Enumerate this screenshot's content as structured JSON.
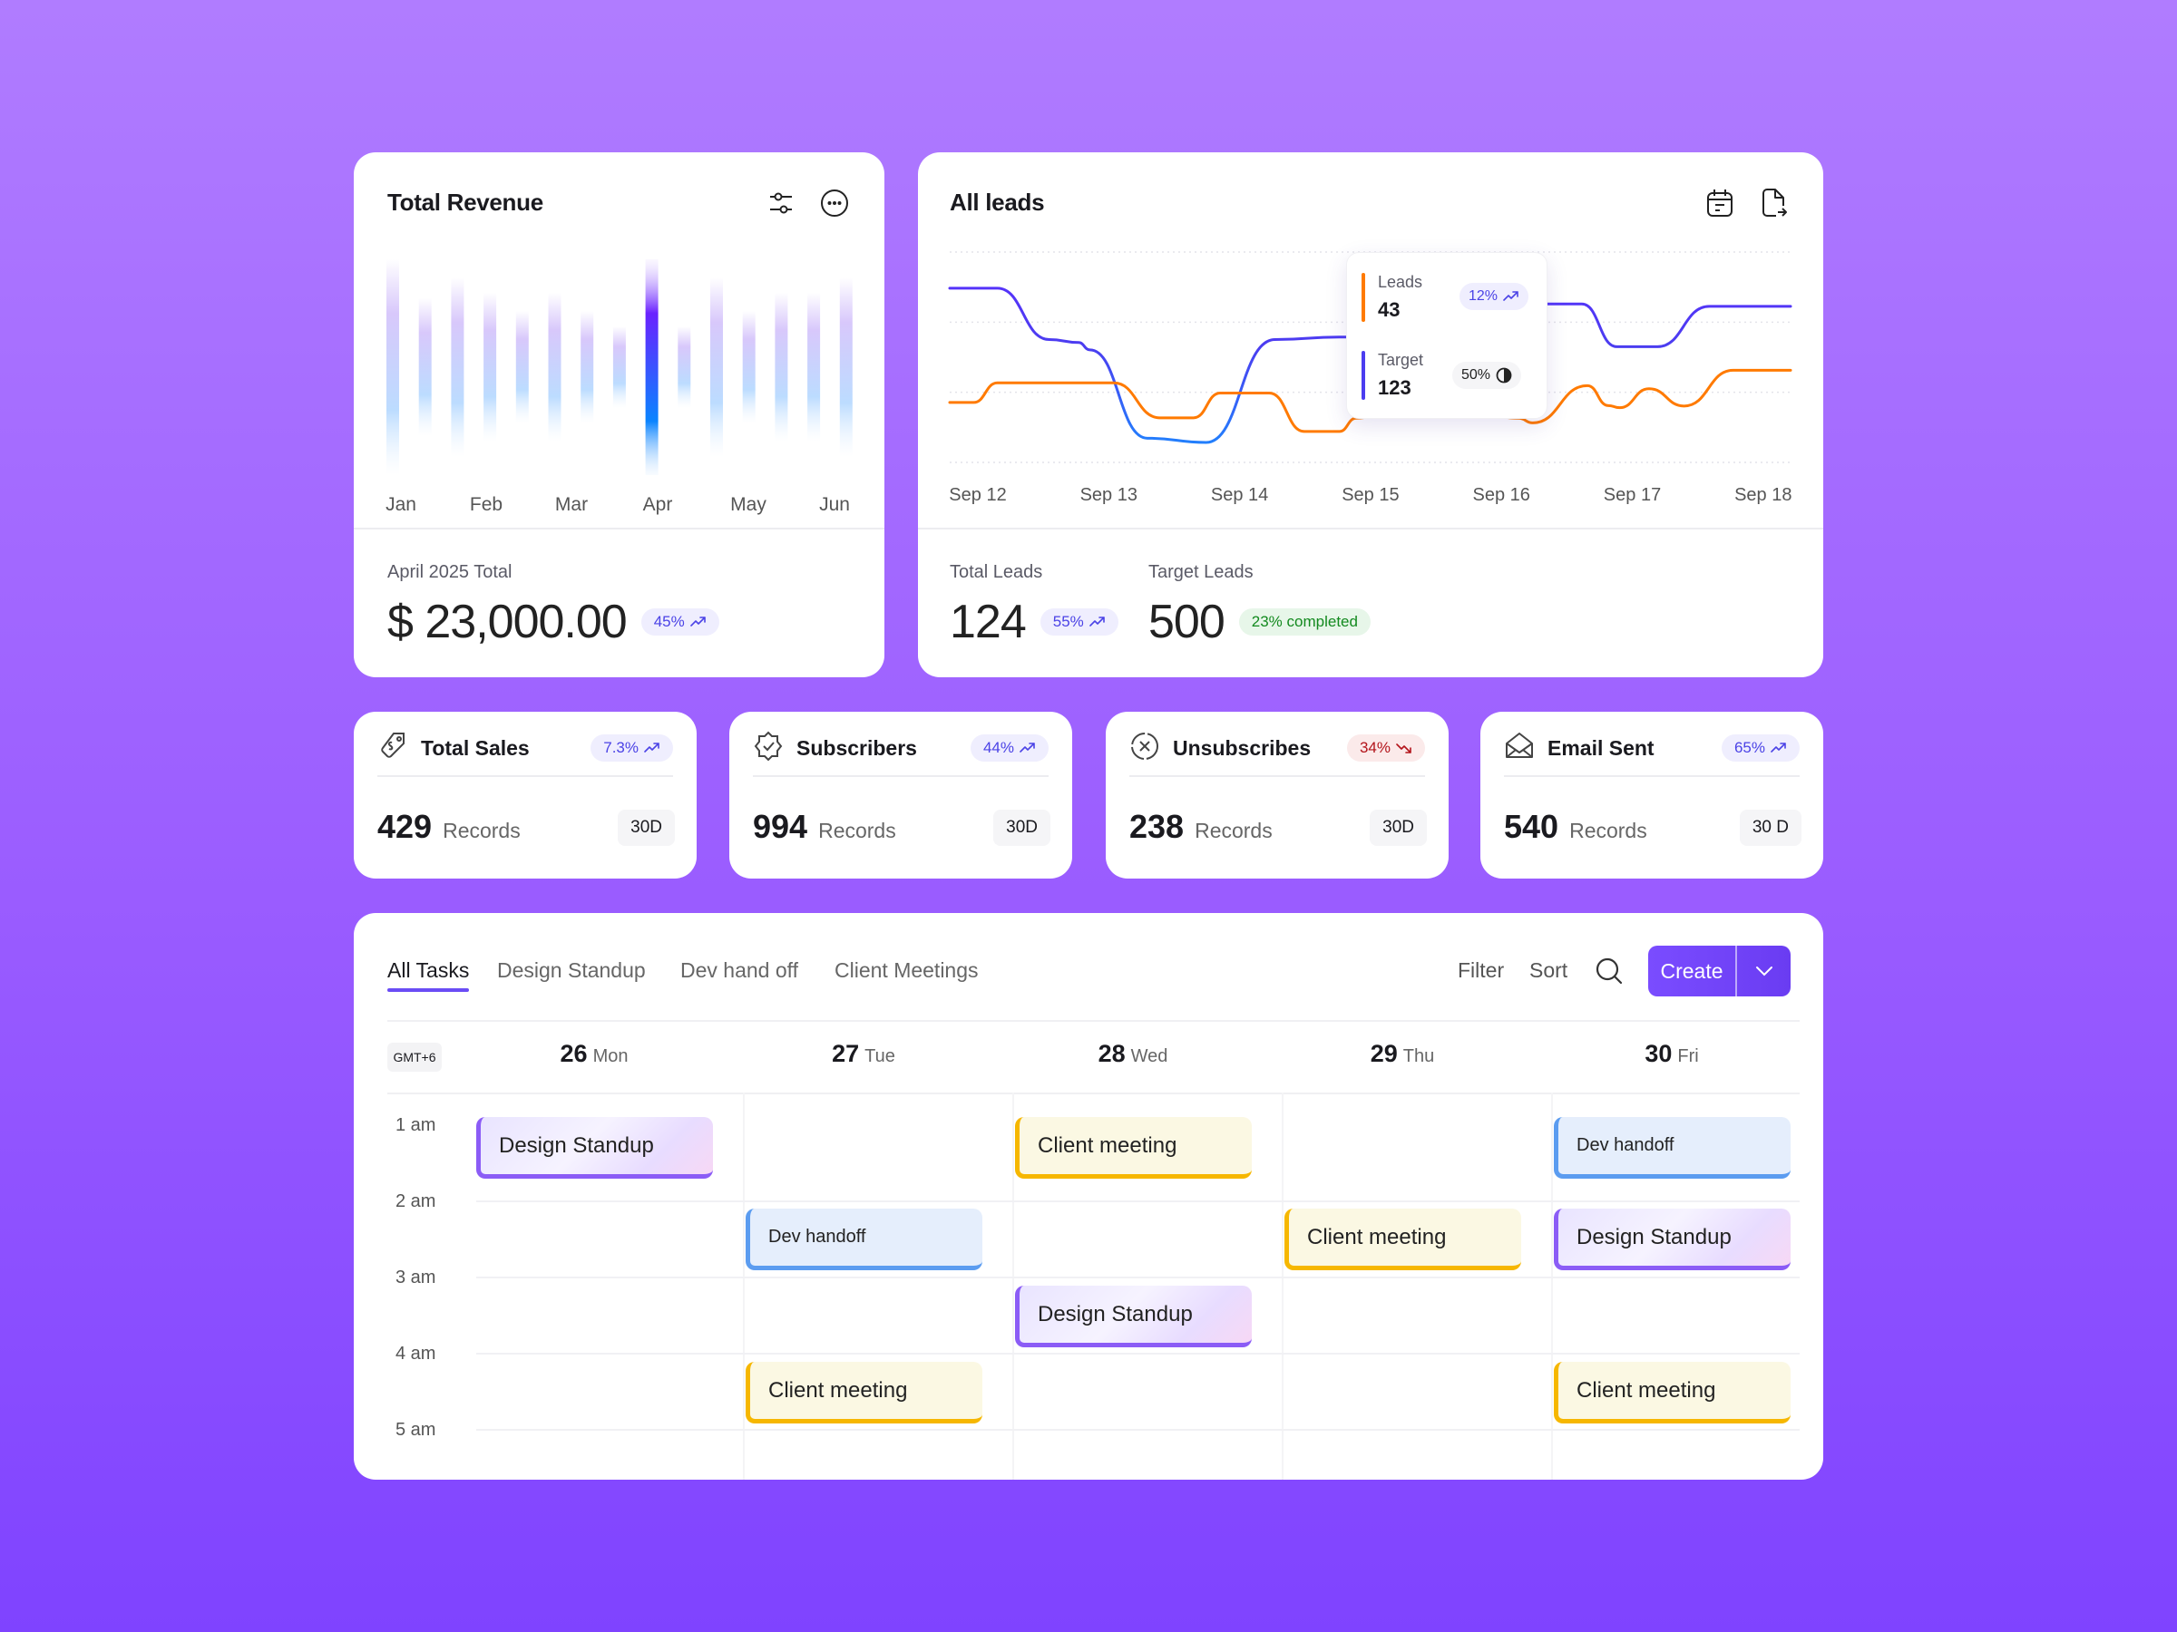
{
  "revenue": {
    "title": "Total Revenue",
    "icons": [
      "sliders-icon",
      "more-icon"
    ],
    "period_label": "April 2025 Total",
    "amount": "$ 23,000.00",
    "change": "45%",
    "chart_data": {
      "type": "bar",
      "tick_labels": [
        "Jan",
        "Feb",
        "Mar",
        "Apr",
        "May",
        "Jun"
      ],
      "values": [
        100,
        64,
        83,
        69,
        52,
        69,
        52,
        38,
        100,
        38,
        83,
        52,
        69,
        69,
        83
      ],
      "highlight_index": 8,
      "grid": false,
      "colors": {
        "top": "#7b2bff",
        "bottom": "#0a84ff",
        "faded": "#cfd6ff"
      }
    }
  },
  "leads": {
    "title": "All leads",
    "icons": [
      "calendar-icon",
      "export-file-icon"
    ],
    "total_label": "Total Leads",
    "total_value": "124",
    "total_change": "55%",
    "target_label": "Target Leads",
    "target_value": "500",
    "target_progress": "23% completed",
    "tooltip": {
      "leads_label": "Leads",
      "leads_value": "43",
      "leads_change": "12%",
      "target_label": "Target",
      "target_value": "123",
      "target_pct": "50%"
    },
    "chart_data": {
      "type": "line",
      "x_tick_labels": [
        "Sep 12",
        "Sep 13",
        "Sep 14",
        "Sep 15",
        "Sep 16",
        "Sep 17",
        "Sep 18"
      ],
      "x_unit": "day of September",
      "ylim": [
        0,
        100
      ],
      "grid": "horizontal dotted",
      "series": [
        {
          "name": "Target",
          "color": "#5b2dff",
          "color_low": "#1a8cff",
          "x": [
            12.0,
            12.34,
            12.71,
            12.92,
            13.0,
            13.41,
            13.83,
            14.32,
            14.78,
            15.19,
            15.69,
            16.06,
            16.26,
            16.51,
            16.76,
            17.05,
            17.42,
            18.0
          ],
          "y": [
            82.8,
            82.8,
            58.4,
            57,
            53.5,
            11.5,
            9.5,
            58.4,
            59.6,
            59.6,
            70,
            75.3,
            75.3,
            75.3,
            55,
            55,
            74.2,
            74.2
          ]
        },
        {
          "name": "Leads",
          "color": "#ff7a00",
          "x": [
            12.0,
            12.17,
            12.34,
            13.17,
            13.5,
            13.74,
            13.93,
            14.28,
            14.53,
            14.78,
            14.9,
            15.27,
            15.69,
            16.06,
            16.16,
            16.55,
            16.7,
            16.78,
            16.99,
            17.24,
            17.59,
            18.0
          ],
          "y": [
            28.5,
            28.5,
            37.8,
            37.8,
            21.2,
            21.2,
            33,
            33,
            14.7,
            14.7,
            21,
            30,
            25,
            21,
            18.8,
            36.5,
            27,
            26,
            35,
            26.8,
            43.8,
            43.8
          ]
        }
      ]
    }
  },
  "stats": [
    {
      "title": "Total Sales",
      "icon": "price-tag-icon",
      "change": "7.3%",
      "trend": "up",
      "value": "429",
      "unit": "Records",
      "period": "30D"
    },
    {
      "title": "Subscribers",
      "icon": "verified-badge-icon",
      "change": "44%",
      "trend": "up",
      "value": "994",
      "unit": "Records",
      "period": "30D"
    },
    {
      "title": "Unsubscribes",
      "icon": "x-circle-icon",
      "change": "34%",
      "trend": "down",
      "value": "238",
      "unit": "Records",
      "period": "30D"
    },
    {
      "title": "Email Sent",
      "icon": "envelope-open-icon",
      "change": "65%",
      "trend": "up",
      "value": "540",
      "unit": "Records",
      "period": "30 D"
    }
  ],
  "colors": {
    "up_bg": "#efeefe",
    "up_fg": "#4b43e6",
    "down_bg": "#fbeaea",
    "down_fg": "#b3141b",
    "accent": "#6a4cf5"
  },
  "tasks": {
    "tabs": [
      "All Tasks",
      "Design Standup",
      "Dev hand off",
      "Client Meetings"
    ],
    "active_tab": 0,
    "filter_label": "Filter",
    "sort_label": "Sort",
    "create_label": "Create",
    "timezone": "GMT+6",
    "days": [
      {
        "num": "26",
        "name": "Mon"
      },
      {
        "num": "27",
        "name": "Tue"
      },
      {
        "num": "28",
        "name": "Wed"
      },
      {
        "num": "29",
        "name": "Thu"
      },
      {
        "num": "30",
        "name": "Fri"
      }
    ],
    "hours": [
      "1 am",
      "2 am",
      "3 am",
      "4 am",
      "5 am"
    ],
    "events": [
      {
        "day": 0,
        "hour": 0,
        "label": "Design Standup",
        "type": "standup"
      },
      {
        "day": 2,
        "hour": 0,
        "label": "Client meeting",
        "type": "client"
      },
      {
        "day": 4,
        "hour": 0,
        "label": "Dev handoff",
        "type": "dev"
      },
      {
        "day": 1,
        "hour": 1,
        "label": "Dev handoff",
        "type": "dev"
      },
      {
        "day": 3,
        "hour": 1,
        "label": "Client meeting",
        "type": "client"
      },
      {
        "day": 4,
        "hour": 1,
        "label": "Design Standup",
        "type": "standup"
      },
      {
        "day": 2,
        "hour": 2,
        "label": "Design Standup",
        "type": "standup"
      },
      {
        "day": 1,
        "hour": 3,
        "label": "Client meeting",
        "type": "client"
      },
      {
        "day": 4,
        "hour": 3,
        "label": "Client meeting",
        "type": "client"
      }
    ]
  }
}
